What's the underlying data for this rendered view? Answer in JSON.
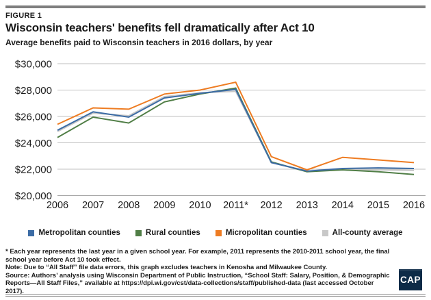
{
  "header": {
    "kicker": "FIGURE 1",
    "title": "Wisconsin teachers' benefits fell dramatically after Act 10",
    "subtitle": "Average benefits paid to Wisconsin teachers in 2016 dollars, by year"
  },
  "chart_data": {
    "type": "line",
    "x_labels": [
      "2006",
      "2007",
      "2008",
      "2009",
      "2010",
      "2011*",
      "2012",
      "2013",
      "2014",
      "2015",
      "2016"
    ],
    "y_ticks": [
      "$30,000",
      "$28,000",
      "$26,000",
      "$24,000",
      "$22,000",
      "$20,000"
    ],
    "ylim": [
      20000,
      30000
    ],
    "grid": true,
    "legend_position": "bottom",
    "gridline_color": "#bfbfbf",
    "baseline_color": "#a8a8a8",
    "series": [
      {
        "name": "Metropolitan counties",
        "color": "#3c6ca5",
        "values": [
          24950,
          26350,
          25950,
          27400,
          27750,
          28050,
          22500,
          21850,
          22050,
          22100,
          22050
        ]
      },
      {
        "name": "Rural counties",
        "color": "#507e46",
        "values": [
          24400,
          25950,
          25500,
          27100,
          27700,
          28150,
          22550,
          21800,
          21950,
          21800,
          21600
        ]
      },
      {
        "name": "Micropolitan counties",
        "color": "#ee7c22",
        "values": [
          25400,
          26650,
          26550,
          27700,
          28000,
          28600,
          22950,
          21950,
          22900,
          22700,
          22500
        ]
      },
      {
        "name": "All-county average",
        "color": "#c8c8c8",
        "values": [
          24850,
          26250,
          26050,
          27500,
          27800,
          27900,
          22500,
          21850,
          21950,
          21950,
          21900
        ]
      }
    ]
  },
  "footnotes": {
    "asterisk": "* Each year represents the last year in a given school year. For example, 2011 represents the 2010-2011 school year, the final school year before Act 10 took effect.",
    "note": "Note: Due to “All Staff” file data errors, this graph excludes teachers in Kenosha and Milwaukee County.",
    "source": "Source: Authors’ analysis using Wisconsin Department of Public Instruction, “School Staff: Salary, Position, & Demographic Reports—All Staff Files,” available at https://dpi.wi.gov/cst/data-collections/staff/published-data (last accessed October 2017)."
  },
  "logo": {
    "text": "CAP",
    "background": "#0d2b47"
  }
}
